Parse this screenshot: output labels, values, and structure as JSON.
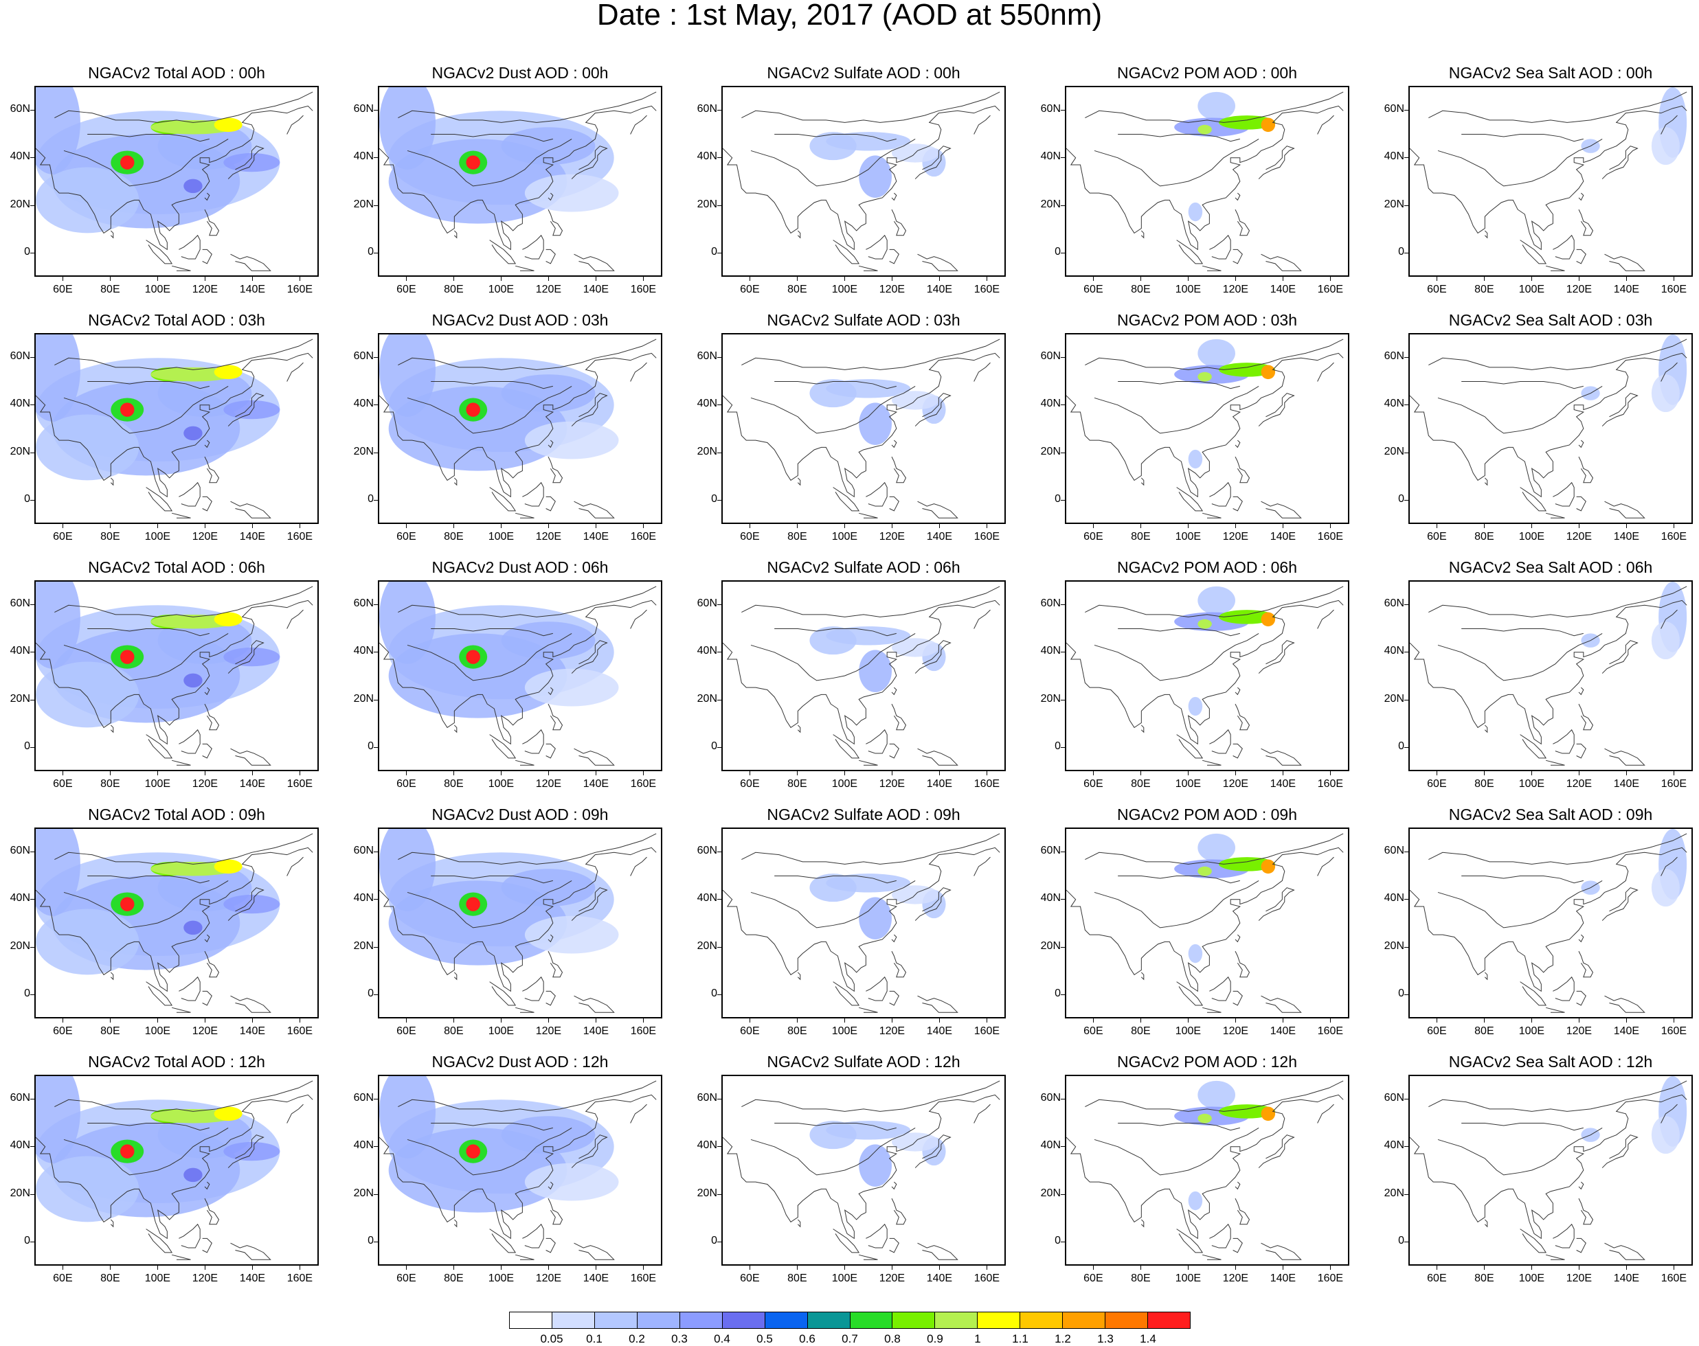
{
  "title": "Date : 1st May, 2017 (AOD at 550nm)",
  "panels": [
    [
      "NGACv2 Total AOD : 00h",
      "NGACv2 Dust AOD : 00h",
      "NGACv2 Sulfate AOD : 00h",
      "NGACv2 POM AOD : 00h",
      "NGACv2 Sea Salt AOD : 00h"
    ],
    [
      "NGACv2 Total AOD : 03h",
      "NGACv2 Dust AOD : 03h",
      "NGACv2 Sulfate AOD : 03h",
      "NGACv2 POM AOD : 03h",
      "NGACv2 Sea Salt AOD : 03h"
    ],
    [
      "NGACv2 Total AOD : 06h",
      "NGACv2 Dust AOD : 06h",
      "NGACv2 Sulfate AOD : 06h",
      "NGACv2 POM AOD : 06h",
      "NGACv2 Sea Salt AOD : 06h"
    ],
    [
      "NGACv2 Total AOD : 09h",
      "NGACv2 Dust AOD : 09h",
      "NGACv2 Sulfate AOD : 09h",
      "NGACv2 POM AOD : 09h",
      "NGACv2 Sea Salt  AOD : 09h"
    ],
    [
      "NGACv2 Total AOD  : 12h",
      "NGACv2 Dust AOD : 12h",
      "NGACv2 Sulfate AOD : 12h",
      "NGACv2 POM  AOD : 12h",
      "NGACv2 Sea Salt  AOD : 12h"
    ]
  ],
  "lat_ticks": [
    "60N",
    "40N",
    "20N",
    "0"
  ],
  "lon_ticks": [
    "60E",
    "80E",
    "100E",
    "120E",
    "140E",
    "160E"
  ],
  "colorbar": {
    "labels": [
      "0.05",
      "0.1",
      "0.2",
      "0.3",
      "0.4",
      "0.5",
      "0.6",
      "0.7",
      "0.8",
      "0.9",
      "1",
      "1.1",
      "1.2",
      "1.3",
      "1.4"
    ],
    "colors": [
      "#ffffff",
      "#d2deff",
      "#b4c8ff",
      "#9fb4ff",
      "#8c9cff",
      "#6a6ef0",
      "#0a64f0",
      "#0a9696",
      "#28dc28",
      "#78f000",
      "#b4f050",
      "#ffff00",
      "#ffc800",
      "#ffa000",
      "#ff7800",
      "#ff1e1e"
    ]
  }
}
